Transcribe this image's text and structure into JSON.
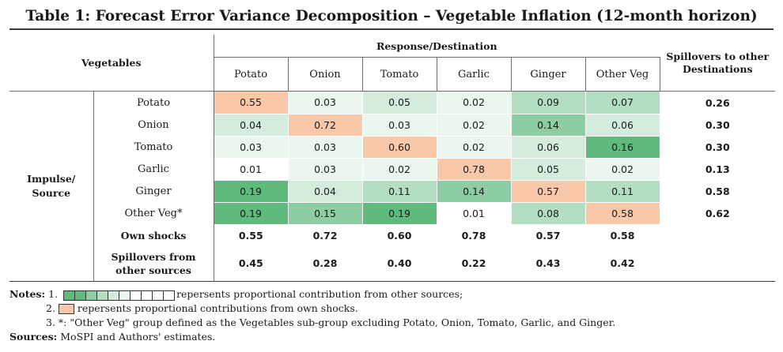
{
  "title": "Table 1: Forecast Error Variance Decomposition – Vegetable Inflation (12-month horizon)",
  "header": {
    "vegetables_label": "Vegetables",
    "response_label": "Response/Destination",
    "columns": [
      "Potato",
      "Onion",
      "Tomato",
      "Garlic",
      "Ginger",
      "Other Veg"
    ],
    "spillovers_to_label": "Spillovers to other Destinations"
  },
  "impulse_label_line1": "Impulse/",
  "impulse_label_line2": "Source",
  "rows": [
    {
      "label": "Potato",
      "values": [
        "0.55",
        "0.03",
        "0.05",
        "0.02",
        "0.09",
        "0.07"
      ],
      "spill": "0.26"
    },
    {
      "label": "Onion",
      "values": [
        "0.04",
        "0.72",
        "0.03",
        "0.02",
        "0.14",
        "0.06"
      ],
      "spill": "0.30"
    },
    {
      "label": "Tomato",
      "values": [
        "0.03",
        "0.03",
        "0.60",
        "0.02",
        "0.06",
        "0.16"
      ],
      "spill": "0.30"
    },
    {
      "label": "Garlic",
      "values": [
        "0.01",
        "0.03",
        "0.02",
        "0.78",
        "0.05",
        "0.02"
      ],
      "spill": "0.13"
    },
    {
      "label": "Ginger",
      "values": [
        "0.19",
        "0.04",
        "0.11",
        "0.14",
        "0.57",
        "0.11"
      ],
      "spill": "0.58"
    },
    {
      "label": "Other Veg*",
      "values": [
        "0.19",
        "0.15",
        "0.19",
        "0.01",
        "0.08",
        "0.58"
      ],
      "spill": "0.62"
    }
  ],
  "own_shocks": {
    "label": "Own shocks",
    "values": [
      "0.55",
      "0.72",
      "0.60",
      "0.78",
      "0.57",
      "0.58"
    ]
  },
  "spillovers_from": {
    "label_line1": "Spillovers from",
    "label_line2": "other sources",
    "values": [
      "0.45",
      "0.28",
      "0.40",
      "0.22",
      "0.43",
      "0.42"
    ]
  },
  "colors": {
    "own": "#f9c8a8",
    "green_scale": [
      "#ffffff",
      "#eaf6ee",
      "#d3ecdb",
      "#b3dec2",
      "#8dcda3",
      "#5fba7d"
    ]
  },
  "notes": {
    "prefix": "Notes:",
    "n1_num": "1.",
    "n1_text": "repersents proportional contribution from other sources;",
    "n2_num": "2.",
    "n2_text": "repersents proportional contributions from own shocks.",
    "n3_num": "3.",
    "n3_text": "*: \"Other Veg\" group defined as the Vegetables sub-group excluding Potato, Onion, Tomato, Garlic, and Ginger."
  },
  "sources": {
    "label": "Sources:",
    "text": "MoSPI and Authors' estimates."
  }
}
